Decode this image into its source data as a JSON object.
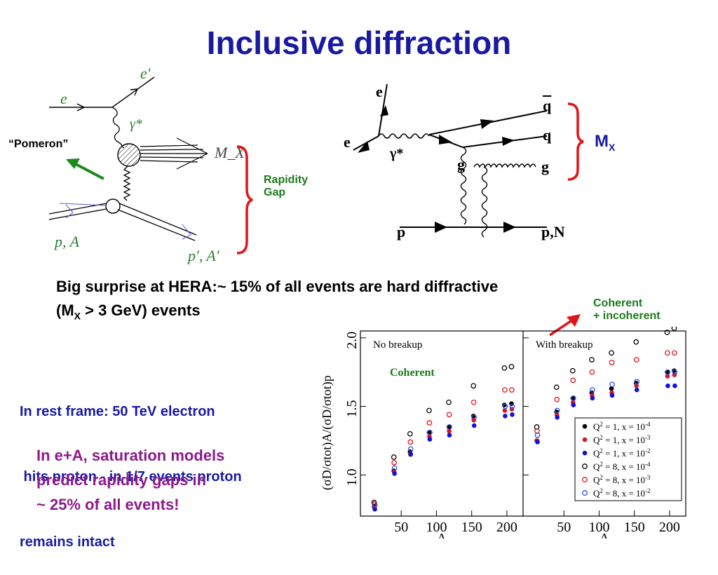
{
  "title": "Inclusive diffraction",
  "left_diagram": {
    "e": "e",
    "e_prime": "e′",
    "gamma": "γ*",
    "mx": "M_X",
    "pa": "p, A",
    "pa_prime": "p′, A′",
    "pomeron": "“Pomeron”",
    "rapidity_gap": [
      "Rapidity",
      "Gap"
    ]
  },
  "right_diagram": {
    "e_top": "e",
    "e_left": "e",
    "gamma": "γ*",
    "qbar": "q",
    "q": "q",
    "g_right": "g",
    "g_mid": "g",
    "p": "p",
    "pn": "p,N",
    "mx": "M",
    "mx_sub": "X"
  },
  "headline": {
    "line1": "Big surprise at HERA:~ 15% of all events are hard diffractive",
    "line2_pre": "(M",
    "line2_sub": "X",
    "line2_post": " > 3 GeV) events"
  },
  "rest_frame": [
    "In rest frame: 50 TeV electron",
    " hits proton - in 1/7 events proton",
    "remains intact"
  ],
  "saturation": [
    "In e+A, saturation models",
    "predict rapidity gaps in",
    "~ 25% of all events!"
  ],
  "coherent_incoherent": [
    "Coherent",
    "+ incoherent"
  ],
  "coherent_label": "Coherent",
  "colors": {
    "title": "#1a1aa0",
    "brace": "#e0151b",
    "green": "#1b7a1b",
    "purple": "#8b1a8b"
  },
  "chart_data": {
    "type": "scatter",
    "ylabel": "(σD/σtot)A/(σD/σtot)p",
    "xlabel": "A",
    "ylim": [
      0.7,
      2.05
    ],
    "xlim": [
      0,
      215
    ],
    "yticks": [
      "1.0",
      "1.5",
      "2.0"
    ],
    "xticks": [
      "50",
      "100",
      "150",
      "200"
    ],
    "panels": [
      {
        "title": "No breakup",
        "series": [
          {
            "name": "Q² = 1, x = 10⁻⁴",
            "marker": "filled",
            "color": "#000000",
            "x": [
              12,
              40,
              63,
              90,
              118,
              153,
              197,
              207
            ],
            "y": [
              0.77,
              1.03,
              1.17,
              1.31,
              1.35,
              1.43,
              1.51,
              1.52
            ]
          },
          {
            "name": "Q² = 1, x = 10⁻³",
            "marker": "filled",
            "color": "#e0151b",
            "x": [
              12,
              40,
              63,
              90,
              118,
              153,
              197,
              207
            ],
            "y": [
              0.76,
              1.02,
              1.15,
              1.28,
              1.32,
              1.4,
              1.47,
              1.48
            ]
          },
          {
            "name": "Q² = 1, x = 10⁻²",
            "marker": "filled",
            "color": "#1010e0",
            "x": [
              12,
              40,
              63,
              90,
              118,
              153,
              197,
              207
            ],
            "y": [
              0.75,
              1.01,
              1.15,
              1.26,
              1.29,
              1.36,
              1.43,
              1.44
            ]
          },
          {
            "name": "Q² = 8, x = 10⁻⁴",
            "marker": "open",
            "color": "#000000",
            "x": [
              12,
              40,
              63,
              90,
              118,
              153,
              197,
              207
            ],
            "y": [
              0.8,
              1.13,
              1.3,
              1.47,
              1.53,
              1.65,
              1.78,
              1.79
            ]
          },
          {
            "name": "Q² = 8, x = 10⁻³",
            "marker": "open",
            "color": "#e0151b",
            "x": [
              12,
              40,
              63,
              90,
              118,
              153,
              197,
              207
            ],
            "y": [
              0.79,
              1.09,
              1.24,
              1.38,
              1.44,
              1.53,
              1.62,
              1.62
            ]
          },
          {
            "name": "Q² = 8, x = 10⁻²",
            "marker": "open",
            "color": "#3050e0",
            "x": [
              12,
              40,
              63,
              90,
              118,
              153,
              197,
              207
            ],
            "y": [
              0.78,
              1.05,
              1.19,
              1.31,
              1.35,
              1.42,
              1.5,
              1.5
            ]
          }
        ]
      },
      {
        "title": "With breakup",
        "series": [
          {
            "name": "Q² = 1, x = 10⁻⁴",
            "marker": "filled",
            "color": "#000000",
            "x": [
              12,
              40,
              63,
              90,
              118,
              153,
              197,
              207
            ],
            "y": [
              1.25,
              1.46,
              1.56,
              1.6,
              1.63,
              1.67,
              1.75,
              1.76
            ]
          },
          {
            "name": "Q² = 1, x = 10⁻³",
            "marker": "filled",
            "color": "#e0151b",
            "x": [
              12,
              40,
              63,
              90,
              118,
              153,
              197,
              207
            ],
            "y": [
              1.25,
              1.44,
              1.53,
              1.58,
              1.6,
              1.65,
              1.72,
              1.73
            ]
          },
          {
            "name": "Q² = 1, x = 10⁻²",
            "marker": "filled",
            "color": "#1010e0",
            "x": [
              12,
              40,
              63,
              90,
              118,
              153,
              197,
              207
            ],
            "y": [
              1.24,
              1.42,
              1.51,
              1.56,
              1.58,
              1.62,
              1.65,
              1.65
            ]
          },
          {
            "name": "Q² = 8, x = 10⁻⁴",
            "marker": "open",
            "color": "#000000",
            "x": [
              12,
              40,
              63,
              90,
              118,
              153,
              197,
              207
            ],
            "y": [
              1.35,
              1.64,
              1.76,
              1.84,
              1.89,
              1.97,
              2.04,
              2.07
            ]
          },
          {
            "name": "Q² = 8, x = 10⁻³",
            "marker": "open",
            "color": "#e0151b",
            "x": [
              12,
              40,
              63,
              90,
              118,
              153,
              197,
              207
            ],
            "y": [
              1.32,
              1.55,
              1.69,
              1.75,
              1.82,
              1.84,
              1.89,
              1.89
            ]
          },
          {
            "name": "Q² = 8, x = 10⁻²",
            "marker": "open",
            "color": "#3050e0",
            "x": [
              12,
              40,
              63,
              90,
              118,
              153,
              197,
              207
            ],
            "y": [
              1.29,
              1.47,
              1.56,
              1.62,
              1.66,
              1.68,
              1.75,
              1.75
            ]
          }
        ]
      }
    ],
    "legend": {
      "placement": "bottom-right of right panel",
      "entries": [
        {
          "q2": "1",
          "x": "10",
          "exp": "-4"
        },
        {
          "q2": "1",
          "x": "10",
          "exp": "-3"
        },
        {
          "q2": "1",
          "x": "10",
          "exp": "-2"
        },
        {
          "q2": "8",
          "x": "10",
          "exp": "-4"
        },
        {
          "q2": "8",
          "x": "10",
          "exp": "-3"
        },
        {
          "q2": "8",
          "x": "10",
          "exp": "-2"
        }
      ]
    }
  }
}
